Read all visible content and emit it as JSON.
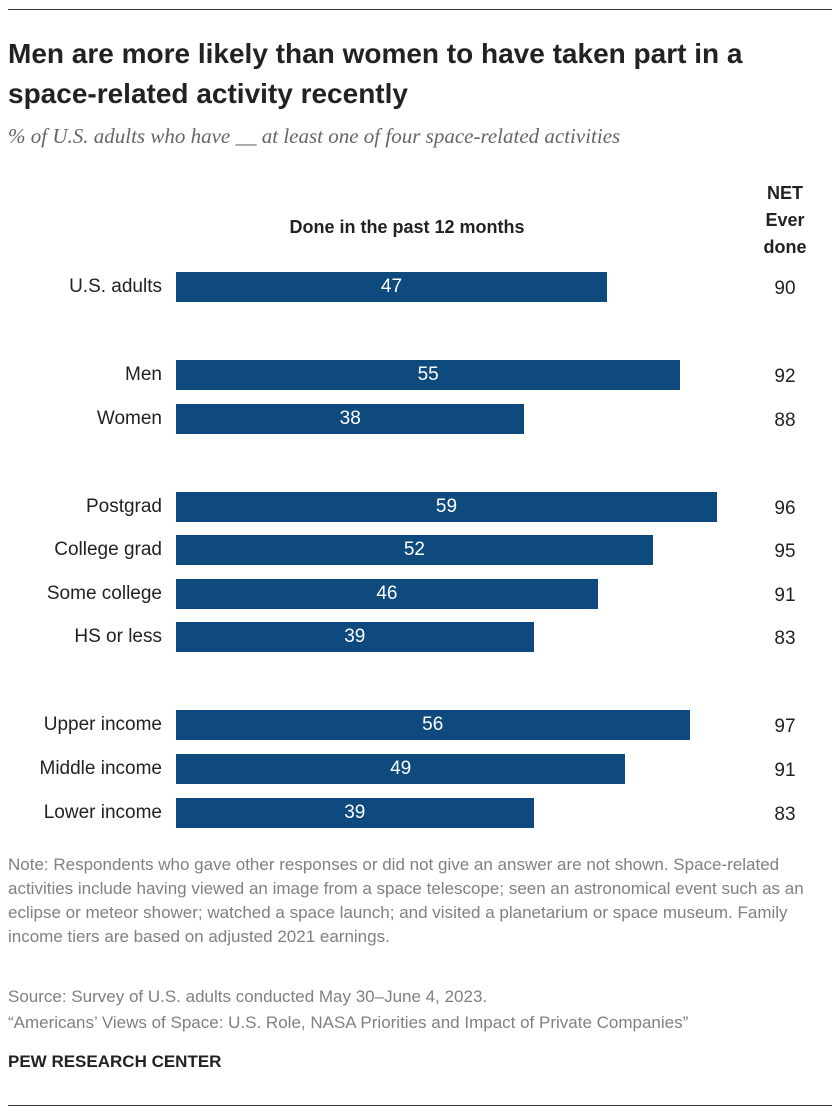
{
  "chart_data": {
    "type": "bar",
    "title": "Men are more likely than women to have taken part in a space-related activity recently",
    "subtitle": "% of U.S. adults who have __ at least one of four space-related activities",
    "categories": [
      "U.S. adults",
      "Men",
      "Women",
      "Postgrad",
      "College grad",
      "Some college",
      "HS or less",
      "Upper income",
      "Middle income",
      "Lower income"
    ],
    "series": [
      {
        "name": "Done in the past 12 months",
        "color": "#0f4a7e",
        "values": [
          47,
          55,
          38,
          59,
          52,
          46,
          39,
          56,
          49,
          39
        ]
      },
      {
        "name": "NET Ever done",
        "values": [
          90,
          92,
          88,
          96,
          95,
          91,
          83,
          97,
          91,
          83
        ]
      }
    ],
    "note": "Note: Respondents who gave other responses or did not give an answer are not shown. Space-related activities include having viewed an image from a space telescope; seen an astronomical event such as an eclipse or meteor shower; watched a space launch; and visited a planetarium or space museum. Family income tiers are based on adjusted 2021 earnings.",
    "source": "Source: Survey of U.S. adults conducted May 30–June 4, 2023.",
    "report": "“Americans’ Views of Space: U.S. Role, NASA Priorities and Impact of Private Companies”",
    "brand": "PEW RESEARCH CENTER"
  }
}
